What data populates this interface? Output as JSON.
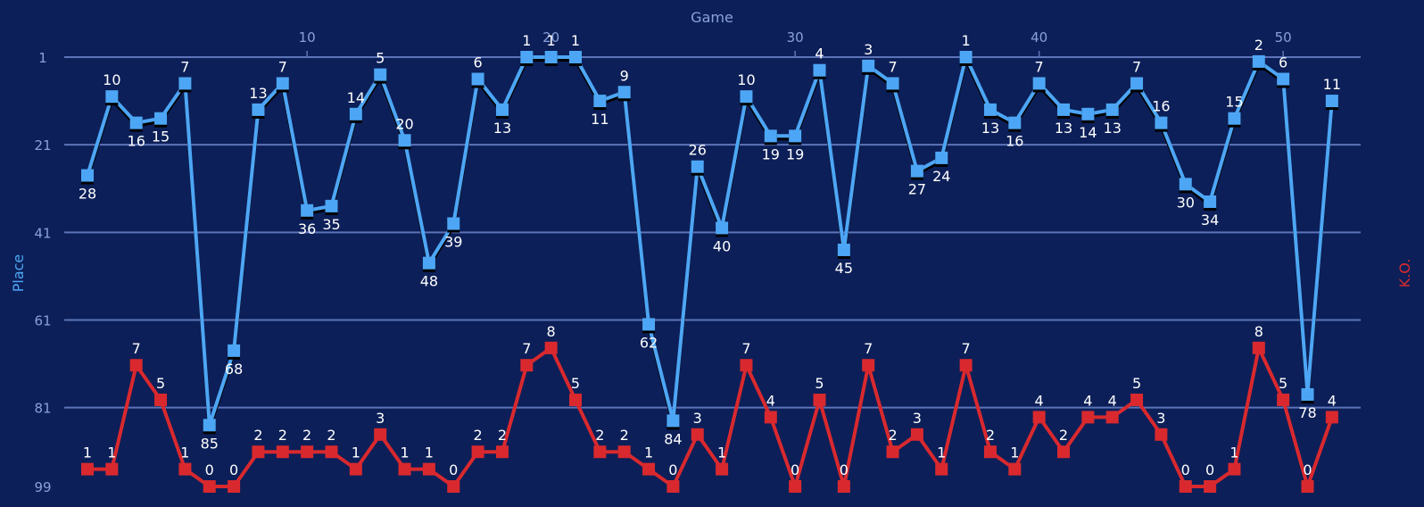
{
  "chart_data": {
    "type": "line",
    "xlabel": "Game",
    "ylabel_left": "Place",
    "ylabel_right": "K.O.",
    "x_ticks": [
      10,
      20,
      30,
      40,
      50
    ],
    "y_ticks": [
      1,
      21,
      41,
      61,
      81,
      99
    ],
    "xlim": [
      0,
      53
    ],
    "ylim": [
      99,
      1
    ],
    "grid": true,
    "colors": {
      "background": "#0c1f58",
      "place": "#4da6f5",
      "ko": "#d9292e",
      "grid": "#5d74b8",
      "tick": "#8aa0d8"
    },
    "x": [
      1,
      2,
      3,
      4,
      5,
      6,
      7,
      8,
      9,
      10,
      11,
      12,
      13,
      14,
      15,
      16,
      17,
      18,
      19,
      20,
      21,
      22,
      23,
      24,
      25,
      26,
      27,
      28,
      29,
      30,
      31,
      32,
      33,
      34,
      35,
      36,
      37,
      38,
      39,
      40,
      41,
      42,
      43,
      44,
      45,
      46,
      47,
      48,
      49,
      50,
      51,
      52
    ],
    "series": [
      {
        "name": "Place",
        "axis": "left",
        "values": [
          28,
          10,
          16,
          15,
          7,
          85,
          68,
          13,
          7,
          36,
          35,
          14,
          5,
          20,
          48,
          39,
          6,
          13,
          1,
          1,
          1,
          11,
          9,
          62,
          84,
          26,
          40,
          10,
          19,
          19,
          4,
          45,
          3,
          7,
          27,
          24,
          1,
          13,
          16,
          7,
          13,
          14,
          13,
          7,
          16,
          30,
          34,
          15,
          2,
          6,
          78,
          11
        ],
        "labels": [
          "28",
          "10",
          "16",
          "15",
          "7",
          "85",
          "68",
          "13",
          "7",
          "36",
          "35",
          "14",
          "5",
          "20",
          "48",
          "39",
          "6",
          "13",
          "1",
          "1",
          "1",
          "11",
          "9",
          "62",
          "84",
          "26",
          "40",
          "10",
          "19",
          "19",
          "4",
          "45",
          "3",
          "7",
          "27",
          "24",
          "1",
          "13",
          "16",
          "7",
          "13",
          "14",
          "13",
          "7",
          "16",
          "30",
          "34",
          "15",
          "2",
          "6",
          "78",
          "11"
        ]
      },
      {
        "name": "K.O.",
        "axis": "right",
        "values": [
          1,
          1,
          7,
          5,
          1,
          0,
          0,
          2,
          2,
          2,
          2,
          1,
          3,
          1,
          1,
          0,
          2,
          2,
          7,
          8,
          5,
          2,
          2,
          1,
          0,
          3,
          1,
          7,
          4,
          0,
          5,
          0,
          7,
          2,
          3,
          1,
          7,
          2,
          1,
          4,
          2,
          4,
          4,
          5,
          3,
          0,
          0,
          1,
          8,
          5,
          0,
          4
        ],
        "labels": [
          "1",
          "1",
          "7",
          "5",
          "1",
          "0",
          "0",
          "2",
          "2",
          "2",
          "2",
          "1",
          "3",
          "1",
          "1",
          "0",
          "2",
          "2",
          "7",
          "8",
          "5",
          "2",
          "2",
          "1",
          "0",
          "3",
          "1",
          "7",
          "4",
          "0",
          "5",
          "0",
          "7",
          "2",
          "3",
          "1",
          "7",
          "2",
          "1",
          "4",
          "2",
          "4",
          "4",
          "5",
          "3",
          "0",
          "0",
          "1",
          "8",
          "5",
          "0",
          "4"
        ]
      }
    ]
  }
}
